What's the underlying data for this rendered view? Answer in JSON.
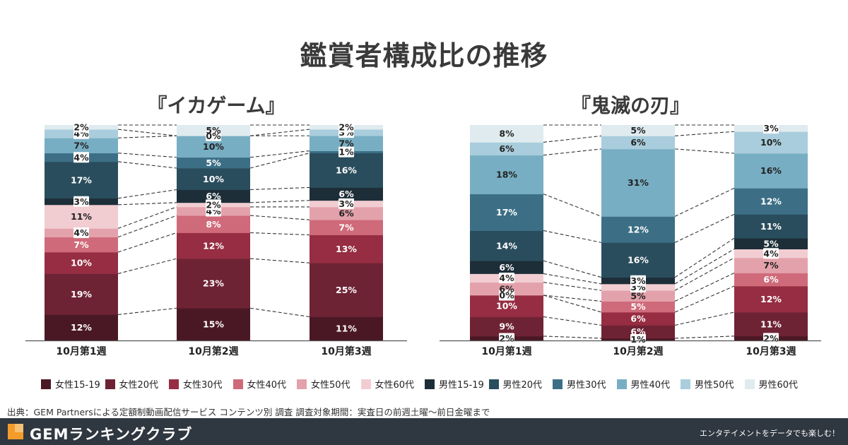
{
  "title": "鑑賞者構成比の推移",
  "colors": [
    "#4a1824",
    "#6e2334",
    "#962d42",
    "#cf6a7a",
    "#e3a2ab",
    "#f1cdd2",
    "#1d2e38",
    "#2a4d5d",
    "#3c6f86",
    "#78aec3",
    "#a9cddc",
    "#dfebef"
  ],
  "label_text_colors": [
    "#ffffff",
    "#ffffff",
    "#ffffff",
    "#ffffff",
    "#222222",
    "#222222",
    "#ffffff",
    "#ffffff",
    "#ffffff",
    "#222222",
    "#222222",
    "#222222"
  ],
  "legend": [
    "女性15-19",
    "女性20代",
    "女性30代",
    "女性40代",
    "女性50代",
    "女性60代",
    "男性15-19",
    "男性20代",
    "男性30代",
    "男性40代",
    "男性50代",
    "男性60代"
  ],
  "source_note": "出典：GEM Partnersによる定額制動画配信サービス コンテンツ別 調査 調査対象期間：実査日の前週土曜〜前日金曜まで",
  "footer": {
    "brand": "GEMランキングクラブ",
    "tagline": "エンタテイメントをデータでも楽しむ！",
    "logo_icon": "gem-logo-icon"
  },
  "chart_data": [
    {
      "type": "stacked-bar-100",
      "title": "『イカゲーム』",
      "categories": [
        "10月第1週",
        "10月第2週",
        "10月第3週"
      ],
      "series": [
        {
          "name": "女性15-19",
          "values": [
            12,
            15,
            11
          ]
        },
        {
          "name": "女性20代",
          "values": [
            19,
            23,
            25
          ]
        },
        {
          "name": "女性30代",
          "values": [
            10,
            12,
            13
          ]
        },
        {
          "name": "女性40代",
          "values": [
            7,
            8,
            7
          ]
        },
        {
          "name": "女性50代",
          "values": [
            4,
            4,
            6
          ]
        },
        {
          "name": "女性60代",
          "values": [
            11,
            2,
            3
          ]
        },
        {
          "name": "男性15-19",
          "values": [
            3,
            6,
            6
          ]
        },
        {
          "name": "男性20代",
          "values": [
            17,
            10,
            16
          ]
        },
        {
          "name": "男性30代",
          "values": [
            4,
            5,
            1
          ]
        },
        {
          "name": "男性40代",
          "values": [
            7,
            10,
            7
          ]
        },
        {
          "name": "男性50代",
          "values": [
            4,
            0,
            3
          ]
        },
        {
          "name": "男性60代",
          "values": [
            2,
            5,
            2
          ]
        }
      ],
      "ylim": [
        0,
        100
      ]
    },
    {
      "type": "stacked-bar-100",
      "title": "『鬼滅の刃』",
      "categories": [
        "10月第1週",
        "10月第2週",
        "10月第3週"
      ],
      "series": [
        {
          "name": "女性15-19",
          "values": [
            2,
            1,
            2
          ]
        },
        {
          "name": "女性20代",
          "values": [
            9,
            6,
            11
          ]
        },
        {
          "name": "女性30代",
          "values": [
            10,
            6,
            12
          ]
        },
        {
          "name": "女性40代",
          "values": [
            0,
            5,
            6
          ]
        },
        {
          "name": "女性50代",
          "values": [
            6,
            5,
            7
          ]
        },
        {
          "name": "女性60代",
          "values": [
            4,
            3,
            4
          ]
        },
        {
          "name": "男性15-19",
          "values": [
            6,
            3,
            5
          ]
        },
        {
          "name": "男性20代",
          "values": [
            14,
            16,
            11
          ]
        },
        {
          "name": "男性30代",
          "values": [
            17,
            12,
            12
          ]
        },
        {
          "name": "男性40代",
          "values": [
            18,
            31,
            16
          ]
        },
        {
          "name": "男性50代",
          "values": [
            6,
            6,
            10
          ]
        },
        {
          "name": "男性60代",
          "values": [
            8,
            5,
            3
          ]
        }
      ],
      "ylim": [
        0,
        100
      ]
    }
  ]
}
